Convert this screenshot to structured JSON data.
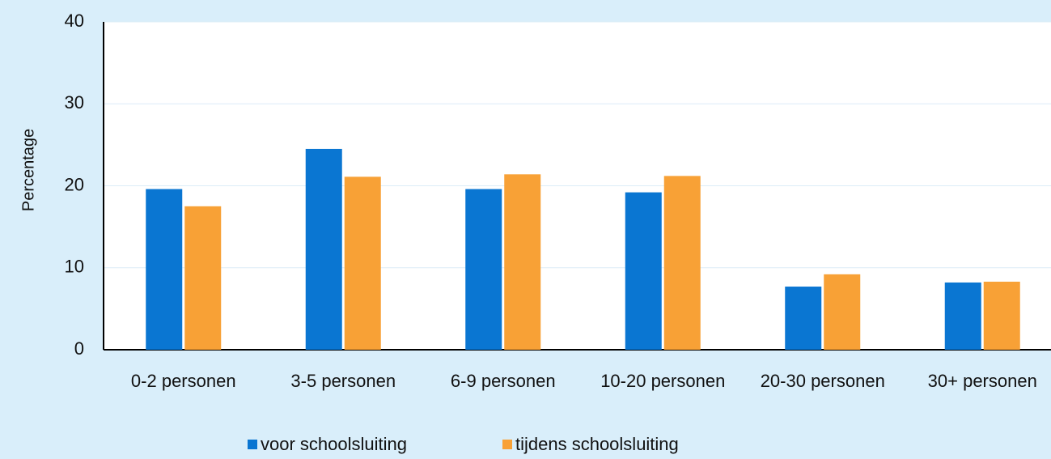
{
  "chart_data": {
    "type": "bar",
    "y_label": "Percentage",
    "categories": [
      "0-2 personen",
      "3-5 personen",
      "6-9 personen",
      "10-20 personen",
      "20-30 personen",
      "30+ personen"
    ],
    "series": [
      {
        "name": "voor schoolsluiting",
        "color": "#0a76d2",
        "values": [
          19.6,
          24.5,
          19.6,
          19.2,
          7.7,
          8.2
        ]
      },
      {
        "name": "tijdens schoolsluiting",
        "color": "#f8a136",
        "values": [
          17.5,
          21.1,
          21.4,
          21.2,
          9.2,
          8.3
        ]
      }
    ],
    "ylim": [
      0,
      40
    ],
    "yticks": [
      0,
      10,
      20,
      30,
      40
    ],
    "grid": true
  }
}
